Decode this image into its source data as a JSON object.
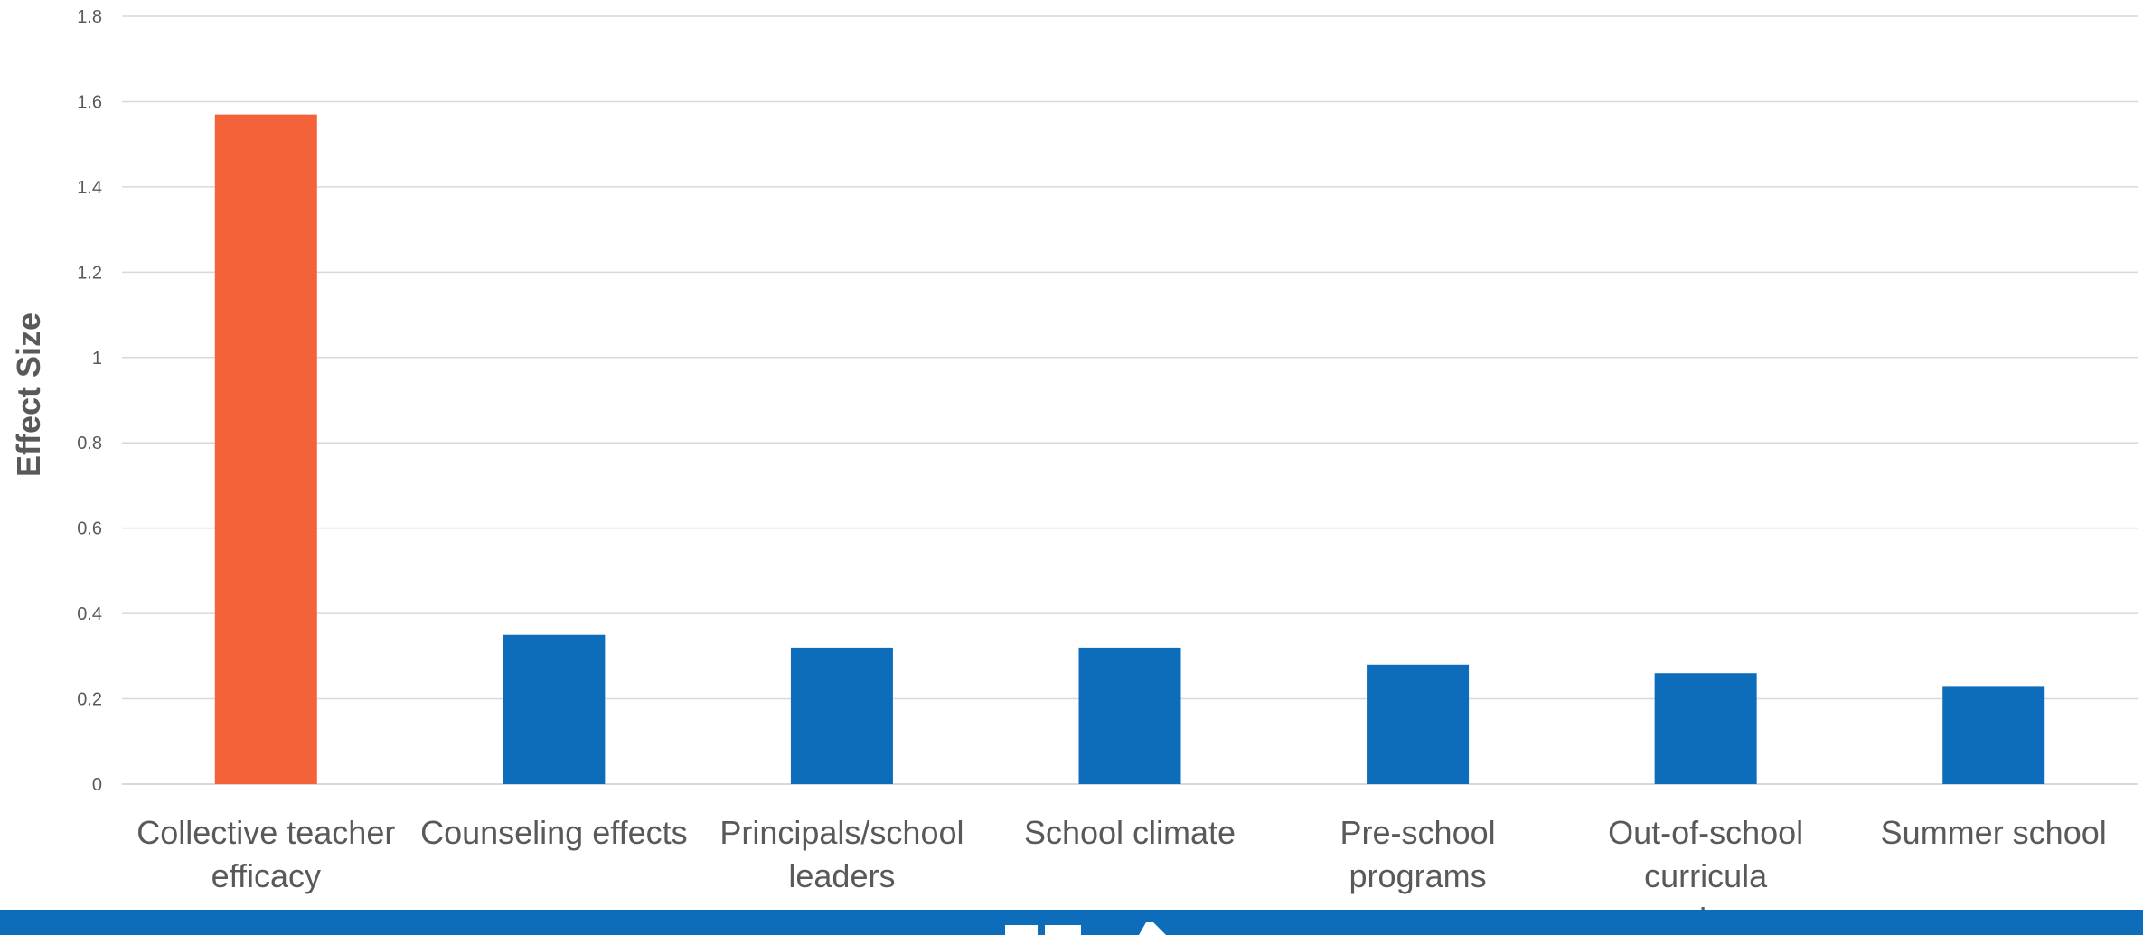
{
  "chart_data": {
    "type": "bar",
    "categories": [
      [
        "Collective teacher",
        "efficacy"
      ],
      [
        "Counseling effects"
      ],
      [
        "Principals/school",
        "leaders"
      ],
      [
        "School climate"
      ],
      [
        "Pre-school",
        "programs"
      ],
      [
        "Out-of-school",
        "curricula",
        "experiences"
      ],
      [
        "Summer school"
      ]
    ],
    "values": [
      1.57,
      0.35,
      0.32,
      0.32,
      0.28,
      0.26,
      0.23
    ],
    "ylabel": "Effect Size",
    "ylim": [
      0,
      1.8
    ],
    "yticks": [
      "0",
      "0.2",
      "0.4",
      "0.6",
      "0.8",
      "1",
      "1.2",
      "1.4",
      "1.6",
      "1.8"
    ],
    "grid": true,
    "colors": {
      "highlight": "#f4623a",
      "bar": "#0e6dba",
      "grid": "#d9d9d9",
      "text": "#595959"
    }
  }
}
